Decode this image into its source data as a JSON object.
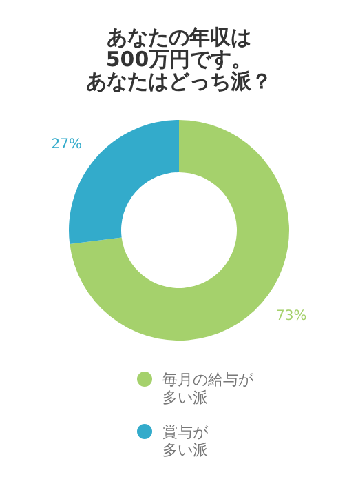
{
  "chart_data": {
    "type": "donut",
    "title": "あなたの年収は500万円です。あなたはどっち派？",
    "categories": [
      "毎月の給与が多い派",
      "賞与が多い派"
    ],
    "values": [
      73,
      27
    ],
    "colors": [
      "#a5d16c",
      "#33abcb"
    ],
    "value_labels": [
      "73%",
      "27%"
    ],
    "legend": "bottom"
  }
}
